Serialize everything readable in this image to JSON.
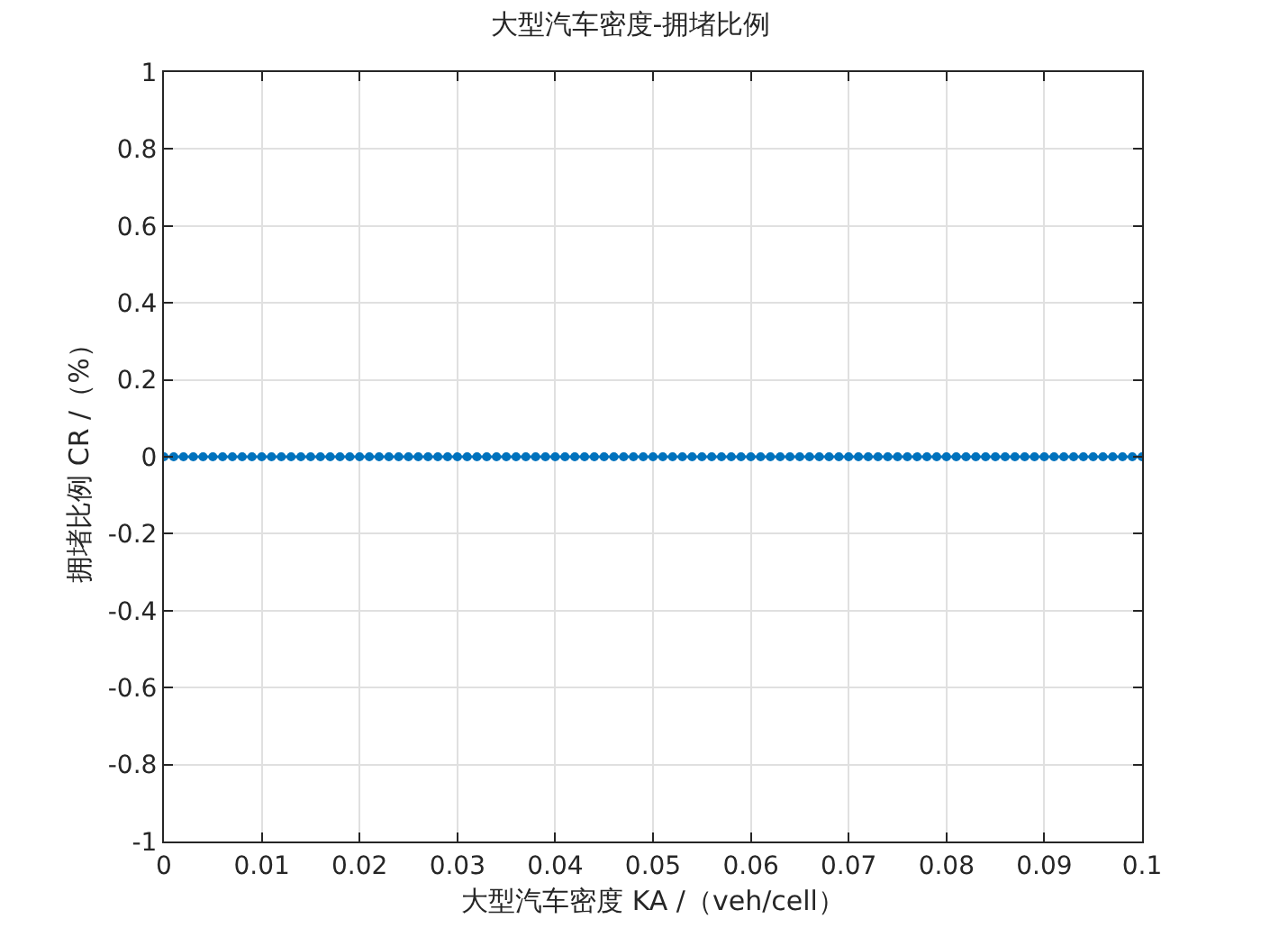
{
  "chart_data": {
    "type": "line",
    "title": "大型汽车密度-拥堵比例",
    "xlabel": "大型汽车密度 KA /（veh/cell）",
    "ylabel": "拥堵比例 CR /（%）",
    "x": [
      0,
      0.001,
      0.002,
      0.003,
      0.004,
      0.005,
      0.006,
      0.007,
      0.008,
      0.009,
      0.01,
      0.011,
      0.012,
      0.013,
      0.014,
      0.015,
      0.016,
      0.017,
      0.018,
      0.019,
      0.02,
      0.021,
      0.022,
      0.023,
      0.024,
      0.025,
      0.026,
      0.027,
      0.028,
      0.029,
      0.03,
      0.031,
      0.032,
      0.033,
      0.034,
      0.035,
      0.036,
      0.037,
      0.038,
      0.039,
      0.04,
      0.041,
      0.042,
      0.043,
      0.044,
      0.045,
      0.046,
      0.047,
      0.048,
      0.049,
      0.05,
      0.051,
      0.052,
      0.053,
      0.054,
      0.055,
      0.056,
      0.057,
      0.058,
      0.059,
      0.06,
      0.061,
      0.062,
      0.063,
      0.064,
      0.065,
      0.066,
      0.067,
      0.068,
      0.069,
      0.07,
      0.071,
      0.072,
      0.073,
      0.074,
      0.075,
      0.076,
      0.077,
      0.078,
      0.079,
      0.08,
      0.081,
      0.082,
      0.083,
      0.084,
      0.085,
      0.086,
      0.087,
      0.088,
      0.089,
      0.09,
      0.091,
      0.092,
      0.093,
      0.094,
      0.095,
      0.096,
      0.097,
      0.098,
      0.099,
      0.1
    ],
    "series": [
      {
        "color": "#0072bd",
        "values": [
          0,
          0,
          0,
          0,
          0,
          0,
          0,
          0,
          0,
          0,
          0,
          0,
          0,
          0,
          0,
          0,
          0,
          0,
          0,
          0,
          0,
          0,
          0,
          0,
          0,
          0,
          0,
          0,
          0,
          0,
          0,
          0,
          0,
          0,
          0,
          0,
          0,
          0,
          0,
          0,
          0,
          0,
          0,
          0,
          0,
          0,
          0,
          0,
          0,
          0,
          0,
          0,
          0,
          0,
          0,
          0,
          0,
          0,
          0,
          0,
          0,
          0,
          0,
          0,
          0,
          0,
          0,
          0,
          0,
          0,
          0,
          0,
          0,
          0,
          0,
          0,
          0,
          0,
          0,
          0,
          0,
          0,
          0,
          0,
          0,
          0,
          0,
          0,
          0,
          0,
          0,
          0,
          0,
          0,
          0,
          0,
          0,
          0,
          0,
          0,
          0
        ]
      }
    ],
    "xlim": [
      0,
      0.1
    ],
    "xticks": [
      0,
      0.01,
      0.02,
      0.03,
      0.04,
      0.05,
      0.06,
      0.07,
      0.08,
      0.09,
      0.1
    ],
    "ylim": [
      -1,
      1
    ],
    "yticks": [
      -1,
      -0.8,
      -0.6,
      -0.4,
      -0.2,
      0,
      0.2,
      0.4,
      0.6,
      0.8,
      1
    ],
    "grid": true,
    "marker": "circle",
    "line_style": "solid",
    "legend": false
  }
}
